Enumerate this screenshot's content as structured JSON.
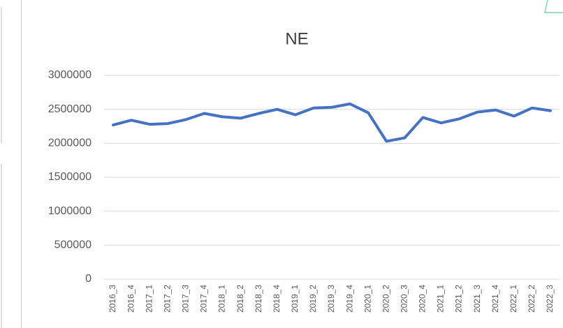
{
  "chart_data": {
    "type": "line",
    "title": "NE",
    "categories": [
      "2016_3",
      "2016_4",
      "2017_1",
      "2017_2",
      "2017_3",
      "2017_4",
      "2018_1",
      "2018_2",
      "2018_3",
      "2018_4",
      "2019_1",
      "2019_2",
      "2019_3",
      "2019_4",
      "2020_1",
      "2020_2",
      "2020_3",
      "2020_4",
      "2021_1",
      "2021_2",
      "2021_3",
      "2021_4",
      "2022_1",
      "2022_2",
      "2022_3"
    ],
    "series": [
      {
        "name": "NE",
        "color": "#4472c4",
        "values": [
          2270000,
          2340000,
          2280000,
          2290000,
          2350000,
          2440000,
          2390000,
          2370000,
          2440000,
          2500000,
          2420000,
          2520000,
          2530000,
          2580000,
          2450000,
          2030000,
          2080000,
          2380000,
          2300000,
          2360000,
          2460000,
          2490000,
          2400000,
          2520000,
          2480000
        ]
      }
    ],
    "ylim": [
      0,
      3000000
    ],
    "yticks": [
      0,
      500000,
      1000000,
      1500000,
      2000000,
      2500000,
      3000000
    ],
    "grid": true
  }
}
